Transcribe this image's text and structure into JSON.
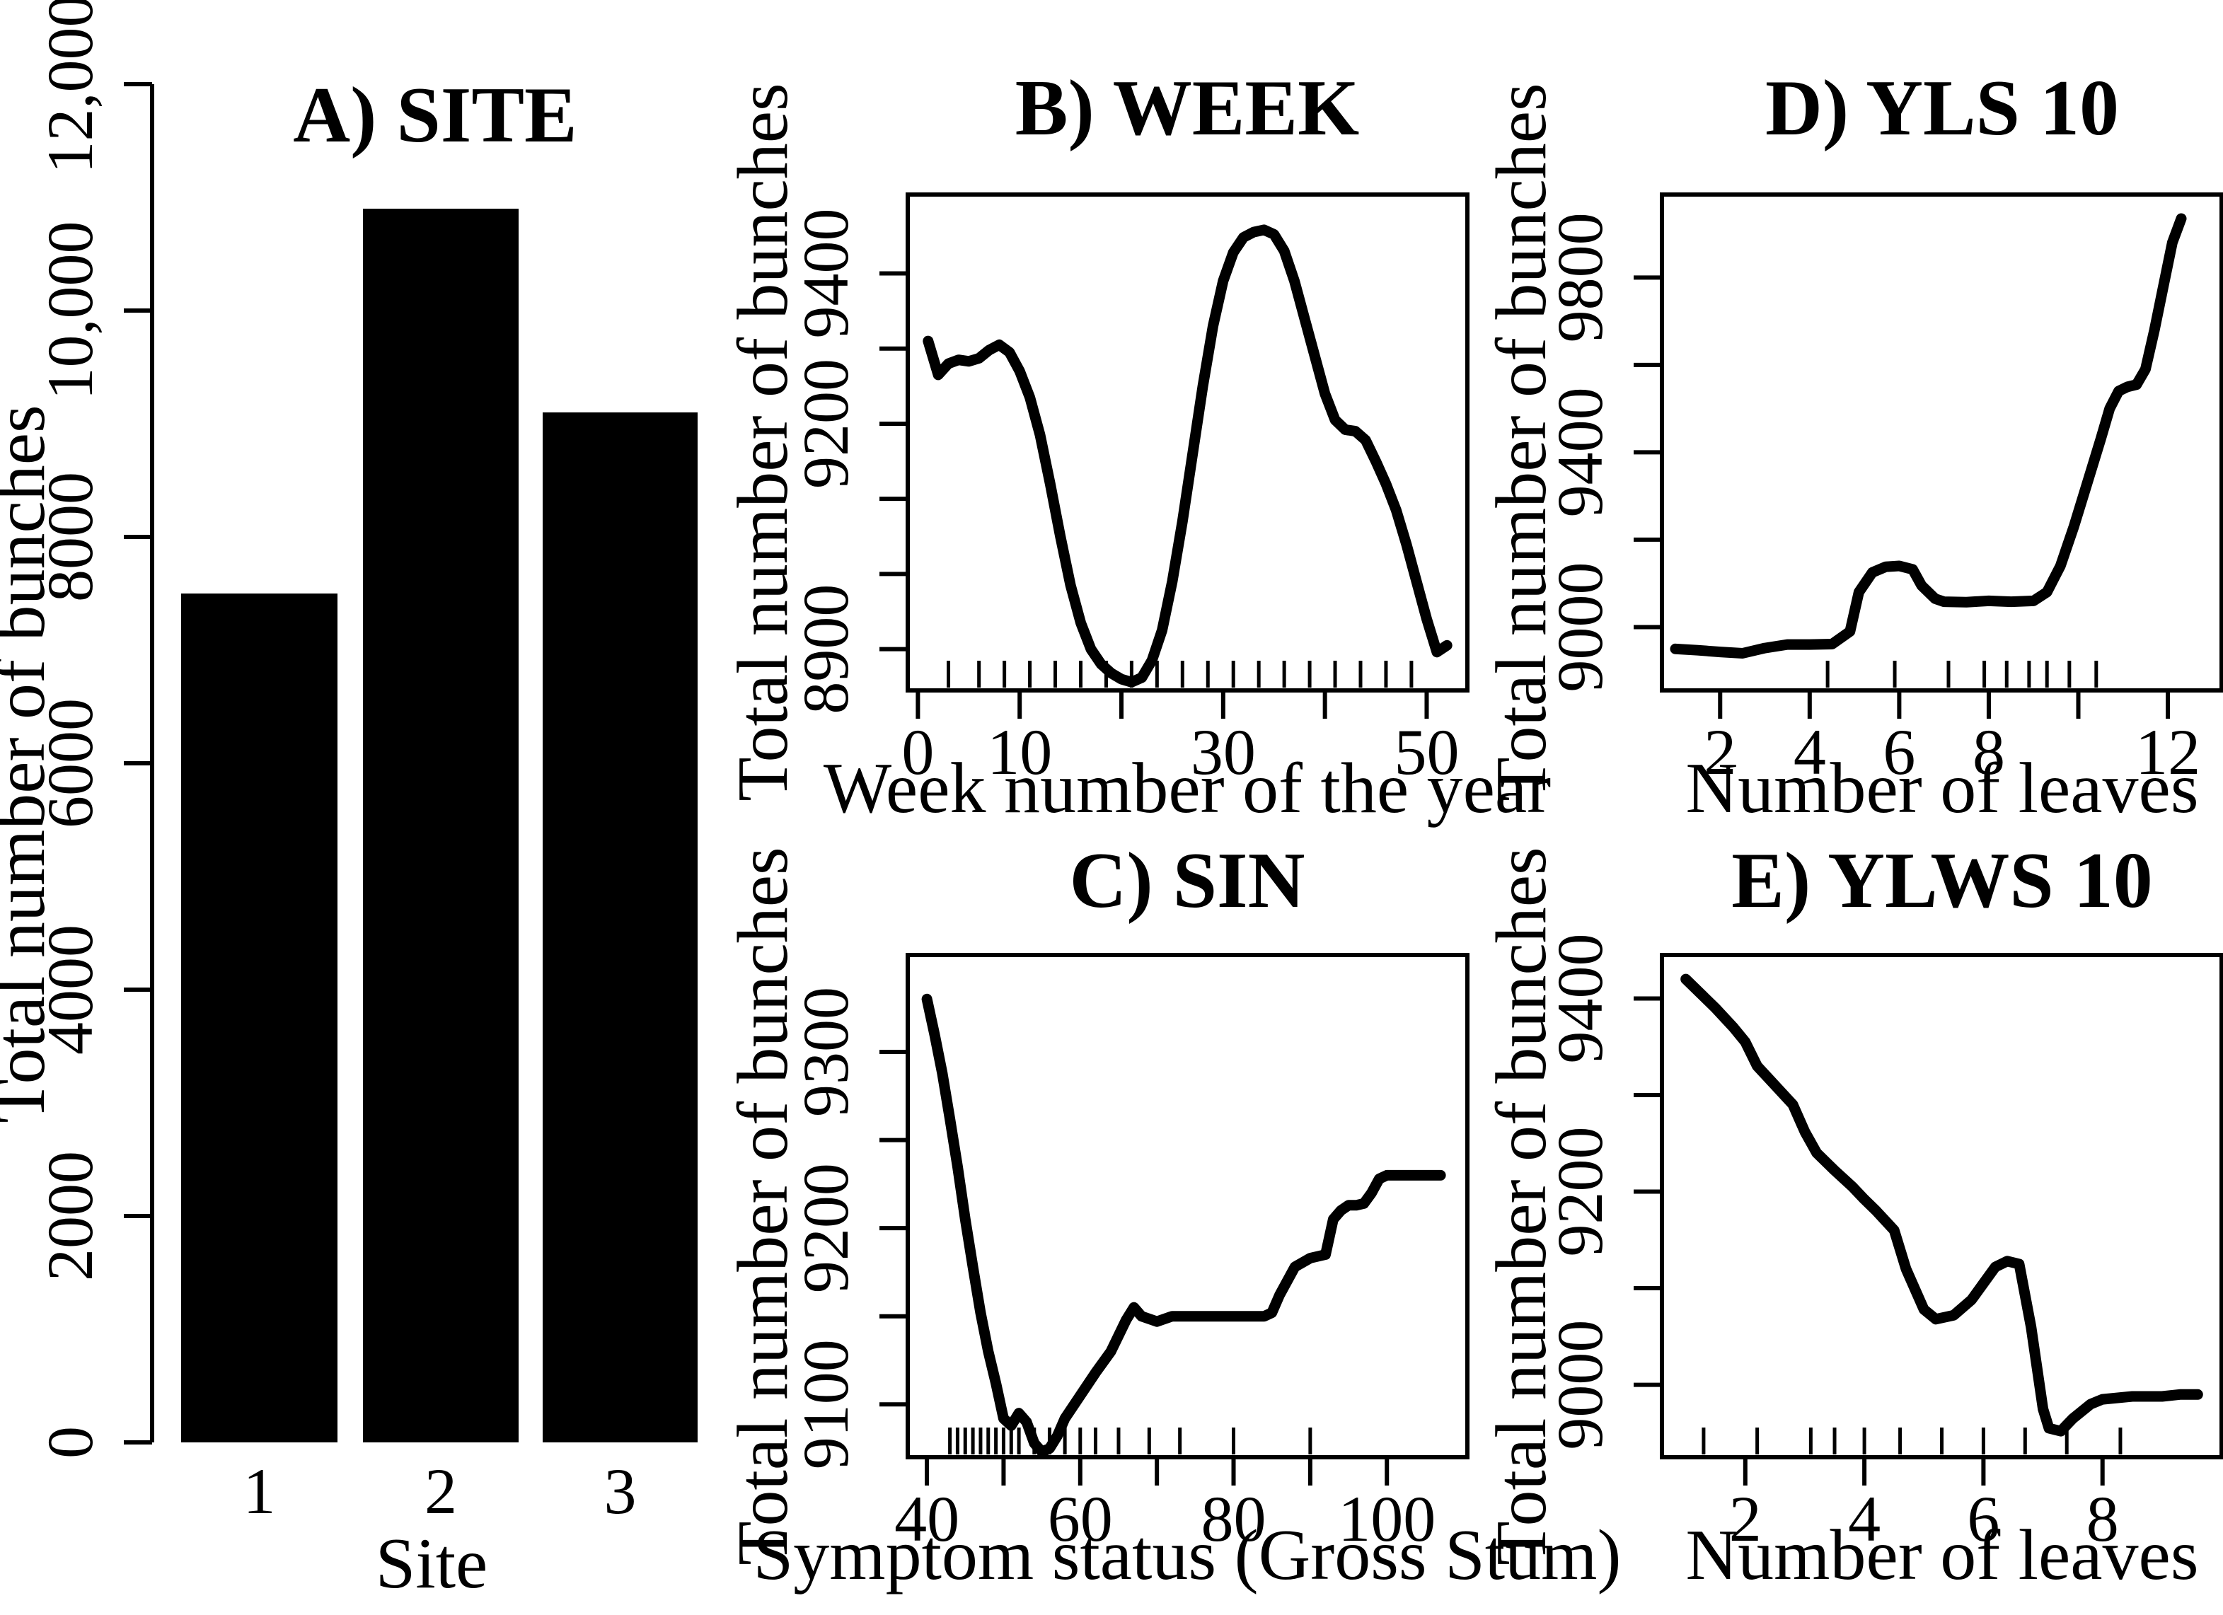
{
  "figure": {
    "background": "#ffffff",
    "ink": "#000000"
  },
  "chart_data": [
    {
      "id": "A",
      "type": "bar",
      "title": "A) SITE",
      "xlabel": "Site",
      "ylabel": "Total number of bunches",
      "categories": [
        "1",
        "2",
        "3"
      ],
      "values": [
        7500,
        10900,
        9100
      ],
      "ylim": [
        0,
        12000
      ],
      "yticks": [
        0,
        2000,
        4000,
        6000,
        8000,
        10000,
        12000
      ],
      "ytick_labels": [
        "0",
        "2000",
        "4000",
        "6000",
        "8000",
        "10,000",
        "12,000"
      ],
      "grid": false,
      "legend": false
    },
    {
      "id": "B",
      "type": "line",
      "title": "B) WEEK",
      "xlabel": "Week number of the year",
      "ylabel": "Total number of bunches",
      "xlim": [
        -1,
        54
      ],
      "ylim": [
        8845,
        9505
      ],
      "xticks": [
        0,
        10,
        20,
        30,
        40,
        50
      ],
      "xtick_labels": [
        "0",
        "10",
        "",
        "30",
        "",
        "50"
      ],
      "yticks": [
        8900,
        9000,
        9100,
        9200,
        9300,
        9400
      ],
      "ytick_labels": [
        "8900",
        "",
        "",
        "9200",
        "",
        "9400"
      ],
      "rug_x": [
        3,
        6,
        8.5,
        11,
        13.5,
        16,
        18.5,
        21,
        23.5,
        26,
        28.5,
        31,
        33.5,
        36,
        38.5,
        41,
        43.5,
        46,
        48.5
      ],
      "x": [
        1,
        2,
        3,
        4,
        5,
        6,
        7,
        8,
        9,
        10,
        11,
        12,
        13,
        14,
        15,
        16,
        17,
        18,
        19,
        20,
        21,
        22,
        23,
        24,
        25,
        26,
        27,
        28,
        29,
        30,
        31,
        32,
        33,
        34,
        35,
        36,
        37,
        38,
        39,
        40,
        41,
        42,
        43,
        44,
        45,
        46,
        47,
        48,
        49,
        50,
        51,
        52
      ],
      "y": [
        9310,
        9265,
        9280,
        9285,
        9283,
        9287,
        9298,
        9305,
        9295,
        9270,
        9235,
        9185,
        9120,
        9050,
        8985,
        8935,
        8900,
        8880,
        8868,
        8860,
        8856,
        8862,
        8885,
        8925,
        8990,
        9070,
        9160,
        9250,
        9330,
        9390,
        9428,
        9448,
        9455,
        9458,
        9452,
        9430,
        9390,
        9340,
        9290,
        9240,
        9205,
        9192,
        9190,
        9178,
        9150,
        9120,
        9085,
        9040,
        8990,
        8940,
        8896,
        8905
      ]
    },
    {
      "id": "C",
      "type": "line",
      "title": "C) SIN",
      "xlabel": "Symptom status (Gross Stum)",
      "ylabel": "Total number of bunches",
      "xlim": [
        37.5,
        110.5
      ],
      "ylim": [
        9070,
        9355
      ],
      "xticks": [
        40,
        50,
        60,
        70,
        80,
        90,
        100
      ],
      "xtick_labels": [
        "40",
        "",
        "60",
        "",
        "80",
        "",
        "100"
      ],
      "yticks": [
        9100,
        9150,
        9200,
        9250,
        9300
      ],
      "ytick_labels": [
        "9100",
        "",
        "9200",
        "",
        "9300"
      ],
      "rug_x": [
        43,
        44,
        45,
        46,
        47,
        48,
        49,
        50,
        51,
        52,
        54,
        56,
        58,
        60,
        62,
        65,
        69,
        73,
        80,
        90
      ],
      "x": [
        40,
        41,
        42,
        43,
        44,
        45,
        46,
        47,
        48,
        49,
        50,
        51,
        52,
        53,
        54,
        55,
        56,
        57,
        58,
        60,
        62,
        64,
        66,
        67,
        68,
        70,
        72,
        74,
        76,
        78,
        80,
        82,
        84,
        85,
        86,
        88,
        90,
        92,
        93,
        94,
        95,
        96,
        97,
        98,
        99,
        100,
        102,
        104,
        106,
        107
      ],
      "y": [
        9330,
        9310,
        9288,
        9262,
        9235,
        9205,
        9178,
        9152,
        9130,
        9112,
        9092,
        9088,
        9095,
        9090,
        9078,
        9073,
        9075,
        9082,
        9092,
        9105,
        9118,
        9130,
        9148,
        9155,
        9150,
        9147,
        9150,
        9150,
        9150,
        9150,
        9150,
        9150,
        9150,
        9152,
        9162,
        9178,
        9183,
        9185,
        9205,
        9210,
        9213,
        9213,
        9214,
        9220,
        9228,
        9230,
        9230,
        9230,
        9230,
        9230
      ]
    },
    {
      "id": "D",
      "type": "line",
      "title": "D) YLS 10",
      "xlabel": "Number of leaves",
      "ylabel": "Total number of bunches",
      "xlim": [
        0.7,
        13.2
      ],
      "ylim": [
        8855,
        9990
      ],
      "xticks": [
        2,
        4,
        6,
        8,
        10,
        12
      ],
      "xtick_labels": [
        "2",
        "4",
        "6",
        "8",
        "",
        "12"
      ],
      "yticks": [
        9000,
        9200,
        9400,
        9600,
        9800
      ],
      "ytick_labels": [
        "9000",
        "",
        "9400",
        "",
        "9800"
      ],
      "rug_x": [
        4.4,
        5.9,
        7.1,
        7.9,
        8.4,
        8.9,
        9.3,
        9.8,
        10.4
      ],
      "x": [
        1,
        1.5,
        2,
        2.5,
        3,
        3.5,
        4,
        4.5,
        4.9,
        5.1,
        5.4,
        5.7,
        6,
        6.3,
        6.5,
        6.8,
        7,
        7.5,
        8,
        8.5,
        9,
        9.3,
        9.6,
        9.9,
        10.2,
        10.5,
        10.7,
        10.9,
        11.1,
        11.3,
        11.5,
        11.7,
        11.9,
        12.1,
        12.3
      ],
      "y": [
        8950,
        8947,
        8943,
        8940,
        8952,
        8960,
        8960,
        8961,
        8990,
        9080,
        9125,
        9138,
        9140,
        9132,
        9095,
        9065,
        9058,
        9057,
        9060,
        9058,
        9060,
        9080,
        9140,
        9230,
        9330,
        9430,
        9500,
        9540,
        9550,
        9555,
        9590,
        9680,
        9780,
        9880,
        9935
      ]
    },
    {
      "id": "E",
      "type": "line",
      "title": "E) YLWS 10",
      "xlabel": "Number of leaves",
      "ylabel": "Total number of bunches",
      "xlim": [
        0.6,
        10.0
      ],
      "ylim": [
        8925,
        9445
      ],
      "xticks": [
        2,
        4,
        6,
        8
      ],
      "xtick_labels": [
        "2",
        "4",
        "6",
        "8"
      ],
      "yticks": [
        9000,
        9100,
        9200,
        9300,
        9400
      ],
      "ytick_labels": [
        "9000",
        "",
        "9200",
        "",
        "9400"
      ],
      "rug_x": [
        1.3,
        2.2,
        3.1,
        3.5,
        4,
        4.6,
        5.3,
        6,
        6.7,
        7.4,
        8.3
      ],
      "x": [
        1,
        1.2,
        1.5,
        1.8,
        2,
        2.2,
        2.5,
        2.8,
        3,
        3.2,
        3.5,
        3.8,
        4,
        4.2,
        4.5,
        4.7,
        5,
        5.2,
        5.5,
        5.8,
        6,
        6.2,
        6.4,
        6.6,
        6.8,
        7,
        7.1,
        7.3,
        7.5,
        7.8,
        8,
        8.5,
        9,
        9.3,
        9.6
      ],
      "y": [
        9420,
        9408,
        9390,
        9370,
        9355,
        9330,
        9310,
        9290,
        9262,
        9240,
        9222,
        9205,
        9192,
        9180,
        9160,
        9120,
        9078,
        9068,
        9072,
        9088,
        9105,
        9122,
        9128,
        9125,
        9060,
        8975,
        8955,
        8952,
        8965,
        8980,
        8985,
        8988,
        8988,
        8990,
        8990
      ]
    }
  ]
}
